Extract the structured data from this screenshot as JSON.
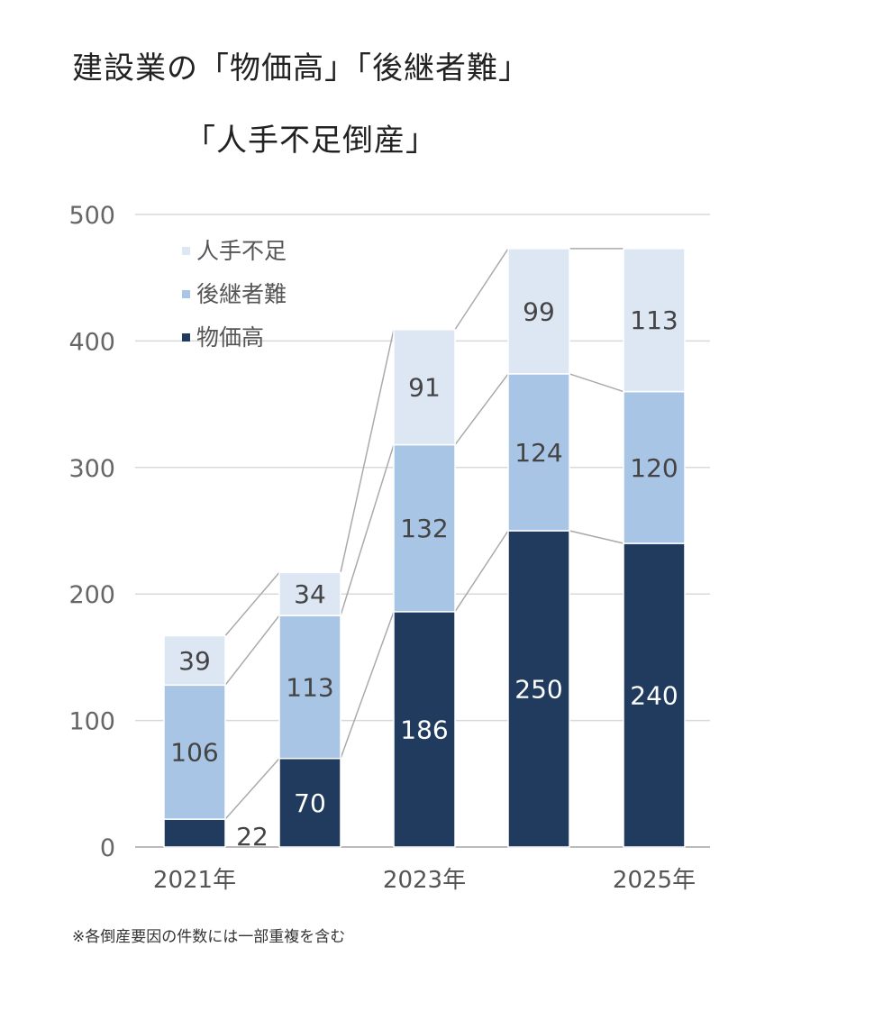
{
  "chart_data": {
    "type": "bar",
    "stacked": true,
    "title_lines": [
      "建設業の「物価高」「後継者難」",
      "「人手不足倒産」"
    ],
    "categories": [
      "2021年",
      "",
      "2023年",
      "",
      "2025年"
    ],
    "series": [
      {
        "name": "物価高",
        "color": "#213b5f",
        "values": [
          22,
          70,
          186,
          250,
          240
        ]
      },
      {
        "name": "後継者難",
        "color": "#a9c5e5",
        "values": [
          106,
          113,
          132,
          124,
          120
        ]
      },
      {
        "name": "人手不足",
        "color": "#dde7f4",
        "values": [
          39,
          34,
          91,
          99,
          113
        ]
      }
    ],
    "legend_order": [
      "人手不足",
      "後継者難",
      "物価高"
    ],
    "legend_position": "top-left",
    "yticks": [
      0,
      100,
      200,
      300,
      400,
      500
    ],
    "ylim": [
      0,
      500
    ],
    "grid": true,
    "footnote": "※各倒産要因の件数には一部重複を含む"
  }
}
